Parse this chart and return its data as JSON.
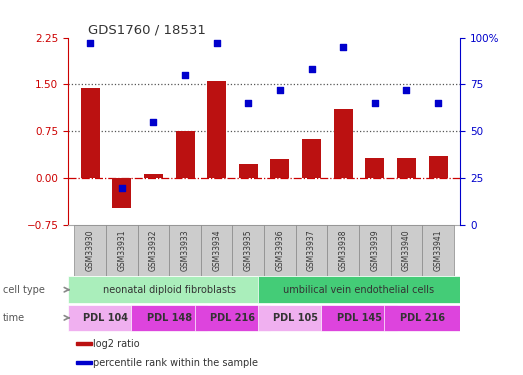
{
  "title": "GDS1760 / 18531",
  "samples": [
    "GSM33930",
    "GSM33931",
    "GSM33932",
    "GSM33933",
    "GSM33934",
    "GSM33935",
    "GSM33936",
    "GSM33937",
    "GSM33938",
    "GSM33939",
    "GSM33940",
    "GSM33941"
  ],
  "log2_ratio": [
    1.45,
    -0.47,
    0.07,
    0.75,
    1.55,
    0.22,
    0.3,
    0.62,
    1.1,
    0.33,
    0.32,
    0.35
  ],
  "percentile_rank": [
    97,
    20,
    55,
    80,
    97,
    65,
    72,
    83,
    95,
    65,
    72,
    65
  ],
  "bar_color": "#bb1111",
  "scatter_color": "#0000cc",
  "ylim_left": [
    -0.75,
    2.25
  ],
  "ylim_right": [
    0,
    100
  ],
  "yticks_left": [
    -0.75,
    0,
    0.75,
    1.5,
    2.25
  ],
  "yticks_right": [
    0,
    25,
    50,
    75,
    100
  ],
  "ytick_right_labels": [
    "0",
    "25",
    "50",
    "75",
    "100%"
  ],
  "hlines": [
    1.5,
    0.75
  ],
  "hline_zero_color": "#cc0000",
  "hline_dotted_color": "#555555",
  "cell_type_row": [
    {
      "label": "neonatal diploid fibroblasts",
      "start": 0,
      "end": 6,
      "color": "#aaeebb"
    },
    {
      "label": "umbilical vein endothelial cells",
      "start": 6,
      "end": 12,
      "color": "#44cc77"
    }
  ],
  "time_row": [
    {
      "label": "PDL 104",
      "start": 0,
      "end": 2,
      "color": "#f0b0f0"
    },
    {
      "label": "PDL 148",
      "start": 2,
      "end": 4,
      "color": "#dd44dd"
    },
    {
      "label": "PDL 216",
      "start": 4,
      "end": 6,
      "color": "#dd44dd"
    },
    {
      "label": "PDL 105",
      "start": 6,
      "end": 8,
      "color": "#f0b0f0"
    },
    {
      "label": "PDL 145",
      "start": 8,
      "end": 10,
      "color": "#dd44dd"
    },
    {
      "label": "PDL 216",
      "start": 10,
      "end": 12,
      "color": "#dd44dd"
    }
  ],
  "legend_items": [
    {
      "label": "log2 ratio",
      "color": "#bb1111"
    },
    {
      "label": "percentile rank within the sample",
      "color": "#0000cc"
    }
  ],
  "left_axis_color": "#cc0000",
  "right_axis_color": "#0000cc",
  "bg_color": "#ffffff",
  "sample_box_color": "#cccccc",
  "row_label_color": "#666666",
  "arrow_color": "#888888"
}
